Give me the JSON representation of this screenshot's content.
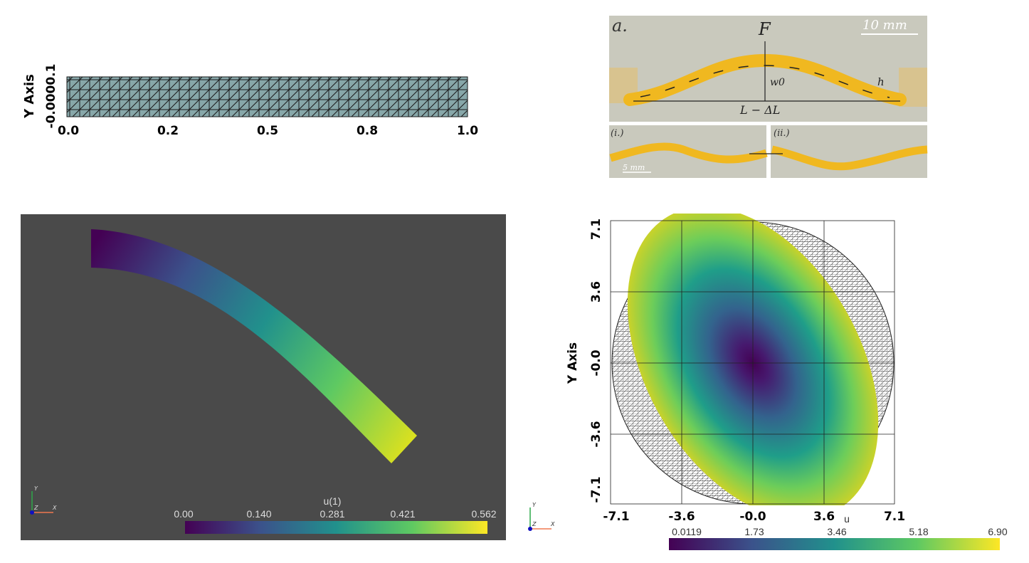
{
  "panel_mesh": {
    "y_axis_label": "Y Axis",
    "y_ticks_overlapped": "-0.0000.1",
    "x_ticks": [
      "0.0",
      "0.2",
      "0.5",
      "0.8",
      "1.0"
    ],
    "mesh_color": "#87a7a9"
  },
  "panel_photo": {
    "label_a": "a.",
    "force": "F",
    "scale_top": "10 mm",
    "w0": "w0",
    "h": "h",
    "length": "L − ΔL",
    "label_i": "(i.)",
    "label_ii": "(ii.)",
    "scale_bottom": "5 mm"
  },
  "panel_beam": {
    "background": "#4a4a4a",
    "colorbar_title": "u(1)",
    "colorbar_ticks": [
      "0.00",
      "0.140",
      "0.281",
      "0.421",
      "0.562"
    ],
    "triad": {
      "x": "X",
      "y": "Y",
      "z": "Z"
    }
  },
  "panel_disk": {
    "y_axis_label": "Y Axis",
    "y_ticks": [
      "7.1",
      "3.6",
      "-0.0",
      "-3.6",
      "-7.1"
    ],
    "x_ticks": [
      "-7.1",
      "-3.6",
      "-0.0",
      "3.6",
      "7.1"
    ],
    "colorbar_title": "u",
    "colorbar_ticks": [
      "0.0119",
      "1.73",
      "3.46",
      "5.18",
      "6.90"
    ],
    "triad": {
      "x": "X",
      "y": "Y",
      "z": "Z"
    }
  },
  "colormap": "viridis"
}
